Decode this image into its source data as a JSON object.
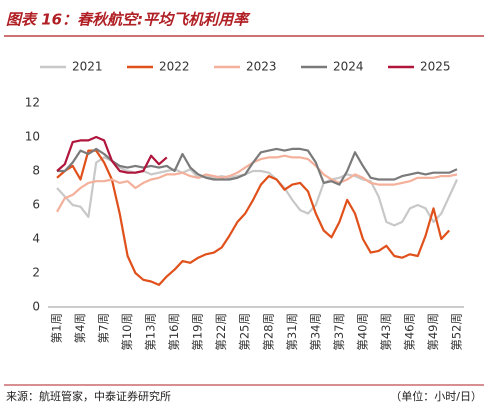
{
  "chart_data": {
    "type": "line",
    "title": "图表 16：春秋航空:平均飞机利用率",
    "source": "来源：航班管家，中泰证券研究所",
    "unit": "（单位：小时/日）",
    "categories": [
      "第1周",
      null,
      null,
      "第4周",
      null,
      null,
      "第7周",
      null,
      null,
      "第10周",
      null,
      null,
      "第13周",
      null,
      null,
      "第16周",
      null,
      null,
      "第19周",
      null,
      null,
      "第22周",
      null,
      null,
      "第25周",
      null,
      null,
      "第28周",
      null,
      null,
      "第31周",
      null,
      null,
      "第34周",
      null,
      null,
      "第37周",
      null,
      null,
      "第40周",
      null,
      null,
      "第43周",
      null,
      null,
      "第46周",
      null,
      null,
      "第49周",
      null,
      null,
      "第52周"
    ],
    "ylim": [
      0,
      12
    ],
    "yticks": [
      0,
      2,
      4,
      6,
      8,
      10,
      12
    ],
    "legend": "top",
    "series": [
      {
        "name": "2021",
        "color": "#c8c8c8",
        "values": [
          7.0,
          6.5,
          6.0,
          5.9,
          5.3,
          8.5,
          8.8,
          8.6,
          8.2,
          8.0,
          7.9,
          8.0,
          7.8,
          7.9,
          8.0,
          8.1,
          7.9,
          8.1,
          7.6,
          7.7,
          7.6,
          7.7,
          7.6,
          7.7,
          7.8,
          8.0,
          8.0,
          7.9,
          7.5,
          7.0,
          6.3,
          5.7,
          5.5,
          6.0,
          7.3,
          7.5,
          7.6,
          7.8,
          7.7,
          7.5,
          7.4,
          6.5,
          5.0,
          4.8,
          5.0,
          5.8,
          6.0,
          5.8,
          5.0,
          5.5,
          6.5,
          7.5
        ]
      },
      {
        "name": "2022",
        "color": "#e0501a",
        "values": [
          7.6,
          8.0,
          8.3,
          7.5,
          9.2,
          9.2,
          8.5,
          7.5,
          5.5,
          3.0,
          2.0,
          1.6,
          1.5,
          1.3,
          1.8,
          2.2,
          2.7,
          2.6,
          2.9,
          3.1,
          3.2,
          3.5,
          4.2,
          5.0,
          5.5,
          6.3,
          7.2,
          7.7,
          7.5,
          6.9,
          7.2,
          7.3,
          6.8,
          5.5,
          4.5,
          4.1,
          5.0,
          6.3,
          5.5,
          4.0,
          3.2,
          3.3,
          3.6,
          3.0,
          2.9,
          3.1,
          3.0,
          4.2,
          5.8,
          4.0,
          4.5,
          null
        ]
      },
      {
        "name": "2023",
        "color": "#f4b09a",
        "values": [
          5.6,
          6.4,
          6.6,
          7.0,
          7.3,
          7.4,
          7.4,
          7.5,
          7.3,
          7.4,
          7.0,
          7.3,
          7.5,
          7.6,
          7.8,
          7.8,
          7.9,
          7.7,
          7.6,
          7.8,
          7.7,
          7.6,
          7.7,
          7.9,
          8.2,
          8.5,
          8.7,
          8.8,
          8.8,
          8.9,
          8.8,
          8.8,
          8.7,
          8.3,
          7.8,
          7.5,
          7.3,
          7.5,
          7.8,
          7.6,
          7.3,
          7.2,
          7.2,
          7.2,
          7.3,
          7.4,
          7.6,
          7.6,
          7.6,
          7.7,
          7.7,
          7.8
        ]
      },
      {
        "name": "2024",
        "color": "#7a7a7a",
        "values": [
          8.0,
          8.0,
          8.5,
          9.2,
          9.0,
          9.3,
          9.0,
          8.6,
          8.3,
          8.2,
          8.3,
          8.2,
          8.3,
          8.2,
          8.3,
          8.0,
          9.0,
          8.2,
          7.8,
          7.6,
          7.5,
          7.5,
          7.5,
          7.6,
          7.8,
          8.5,
          9.1,
          9.2,
          9.3,
          9.2,
          9.3,
          9.3,
          9.2,
          8.5,
          7.3,
          7.4,
          7.2,
          8.0,
          9.1,
          8.3,
          7.6,
          7.5,
          7.5,
          7.5,
          7.7,
          7.8,
          7.9,
          7.8,
          7.9,
          7.9,
          7.9,
          8.1
        ]
      },
      {
        "name": "2025",
        "color": "#b0163c",
        "values": [
          8.0,
          8.4,
          9.7,
          9.8,
          9.8,
          10.0,
          9.8,
          8.6,
          8.0,
          7.9,
          7.9,
          8.0,
          8.9,
          8.4,
          8.8,
          null,
          null,
          null,
          null,
          null,
          null,
          null,
          null,
          null,
          null,
          null,
          null,
          null,
          null,
          null,
          null,
          null,
          null,
          null,
          null,
          null,
          null,
          null,
          null,
          null,
          null,
          null,
          null,
          null,
          null,
          null,
          null,
          null,
          null,
          null,
          null,
          null
        ]
      }
    ]
  }
}
